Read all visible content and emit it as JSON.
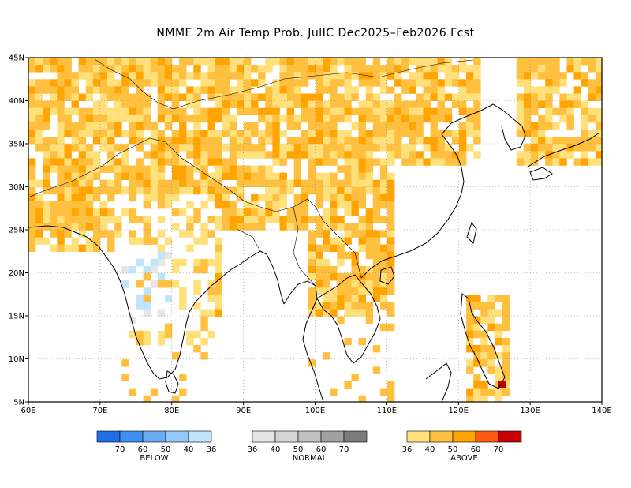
{
  "title": "NMME 2m Air Temp Prob. JulIC  Dec2025–Feb2026 Fcst",
  "map": {
    "lon_range": [
      60,
      140
    ],
    "lat_range": [
      5,
      45
    ],
    "x_ticks": [
      "60E",
      "70E",
      "80E",
      "90E",
      "100E",
      "110E",
      "120E",
      "130E",
      "140E"
    ],
    "y_ticks": [
      "45N",
      "40N",
      "35N",
      "30N",
      "25N",
      "20N",
      "15N",
      "10N",
      "5N"
    ]
  },
  "legend": {
    "below": {
      "name": "BELOW",
      "colors": [
        "#1f6fe8",
        "#3f8ef0",
        "#6aabf4",
        "#93c8f7",
        "#bfe4fb"
      ],
      "labels": [
        "70",
        "60",
        "50",
        "40",
        "36"
      ]
    },
    "normal": {
      "name": "NORMAL",
      "colors": [
        "#e6e6e6",
        "#d5d5d5",
        "#c0c0c0",
        "#a0a0a0",
        "#7b7b7b"
      ],
      "labels": [
        "36",
        "40",
        "50",
        "60",
        "70"
      ]
    },
    "above": {
      "name": "ABOVE",
      "colors": [
        "#ffe07a",
        "#ffc040",
        "#ffa400",
        "#ff5a10",
        "#c80000"
      ],
      "labels": [
        "36",
        "40",
        "50",
        "60",
        "70"
      ]
    }
  }
}
